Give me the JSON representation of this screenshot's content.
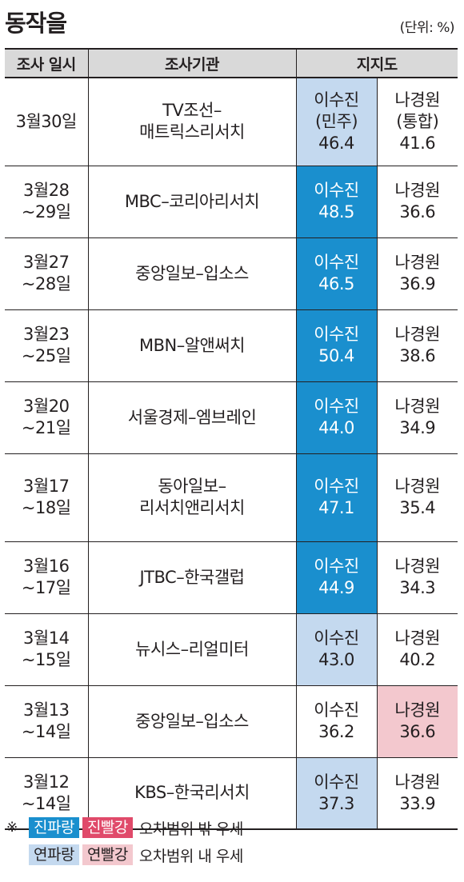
{
  "chart_data": {
    "type": "table",
    "title": "동작을",
    "unit_note": "(단위: %)",
    "columns": [
      "조사 일시",
      "조사기관",
      "지지도"
    ],
    "rows": [
      {
        "date": [
          "3월30일"
        ],
        "org": [
          "TV조선–",
          "매트릭스리서치"
        ],
        "lee": {
          "label": "이수진",
          "party": "(민주)",
          "value": "46.4",
          "shade": "light-blue"
        },
        "na": {
          "label": "나경원",
          "party": "(통합)",
          "value": "41.6",
          "shade": "none"
        }
      },
      {
        "date": [
          "3월28",
          "~29일"
        ],
        "org": [
          "MBC–코리아리서치"
        ],
        "lee": {
          "label": "이수진",
          "value": "48.5",
          "shade": "dark-blue"
        },
        "na": {
          "label": "나경원",
          "value": "36.6",
          "shade": "none"
        }
      },
      {
        "date": [
          "3월27",
          "~28일"
        ],
        "org": [
          "중앙일보–입소스"
        ],
        "lee": {
          "label": "이수진",
          "value": "46.5",
          "shade": "dark-blue"
        },
        "na": {
          "label": "나경원",
          "value": "36.9",
          "shade": "none"
        }
      },
      {
        "date": [
          "3월23",
          "~25일"
        ],
        "org": [
          "MBN–알앤써치"
        ],
        "lee": {
          "label": "이수진",
          "value": "50.4",
          "shade": "dark-blue"
        },
        "na": {
          "label": "나경원",
          "value": "38.6",
          "shade": "none"
        }
      },
      {
        "date": [
          "3월20",
          "~21일"
        ],
        "org": [
          "서울경제–엠브레인"
        ],
        "lee": {
          "label": "이수진",
          "value": "44.0",
          "shade": "dark-blue"
        },
        "na": {
          "label": "나경원",
          "value": "34.9",
          "shade": "none"
        }
      },
      {
        "date": [
          "3월17",
          "~18일"
        ],
        "org": [
          "동아일보–",
          "리서치앤리서치"
        ],
        "lee": {
          "label": "이수진",
          "value": "47.1",
          "shade": "dark-blue"
        },
        "na": {
          "label": "나경원",
          "value": "35.4",
          "shade": "none"
        }
      },
      {
        "date": [
          "3월16",
          "~17일"
        ],
        "org": [
          "JTBC–한국갤럽"
        ],
        "lee": {
          "label": "이수진",
          "value": "44.9",
          "shade": "dark-blue"
        },
        "na": {
          "label": "나경원",
          "value": "34.3",
          "shade": "none"
        }
      },
      {
        "date": [
          "3월14",
          "~15일"
        ],
        "org": [
          "뉴시스–리얼미터"
        ],
        "lee": {
          "label": "이수진",
          "value": "43.0",
          "shade": "light-blue"
        },
        "na": {
          "label": "나경원",
          "value": "40.2",
          "shade": "none"
        }
      },
      {
        "date": [
          "3월13",
          "~14일"
        ],
        "org": [
          "중앙일보–입소스"
        ],
        "lee": {
          "label": "이수진",
          "value": "36.2",
          "shade": "none"
        },
        "na": {
          "label": "나경원",
          "value": "36.6",
          "shade": "light-red"
        }
      },
      {
        "date": [
          "3월12",
          "~14일"
        ],
        "org": [
          "KBS–한국리서치"
        ],
        "lee": {
          "label": "이수진",
          "value": "37.3",
          "shade": "light-blue"
        },
        "na": {
          "label": "나경원",
          "value": "33.9",
          "shade": "none"
        }
      }
    ]
  },
  "legend": {
    "mark": "※",
    "rows": [
      {
        "chips": [
          {
            "text": "진파랑",
            "shade": "dark-blue"
          },
          {
            "text": "진빨강",
            "shade": "dark-red"
          }
        ],
        "text": "오차범위 밖 우세"
      },
      {
        "chips": [
          {
            "text": "연파랑",
            "shade": "light-blue"
          },
          {
            "text": "연빨강",
            "shade": "light-red"
          }
        ],
        "text": "오차범위 내 우세"
      }
    ]
  },
  "colors": {
    "dark-blue": "#1a8fce",
    "light-blue": "#c4d9ef",
    "dark-red": "#e04a6a",
    "light-red": "#f3c8ce",
    "header-gray": "#d9d9d9"
  }
}
